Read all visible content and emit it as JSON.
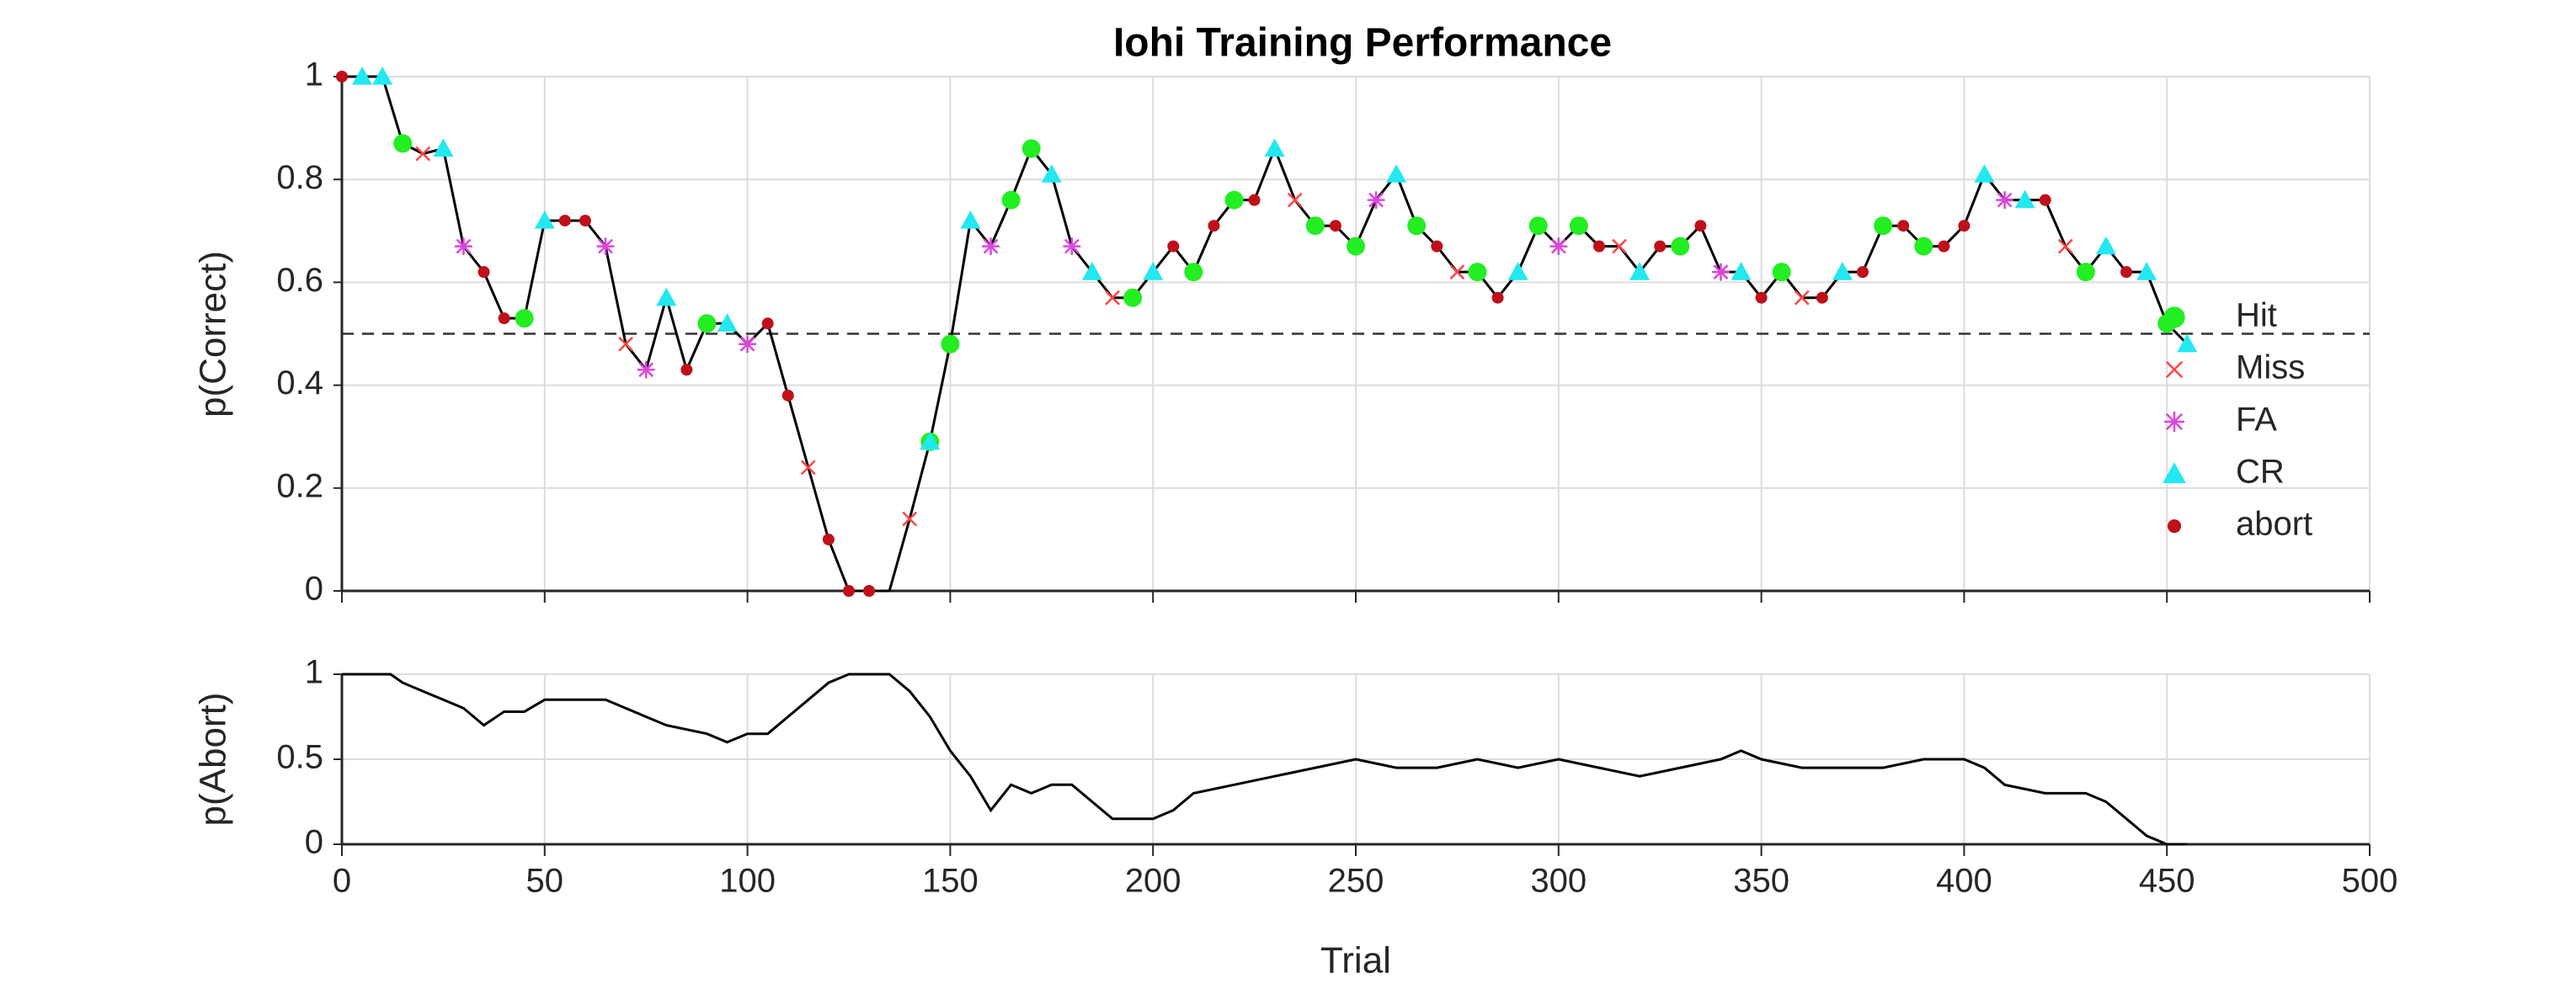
{
  "chart_data": [
    {
      "type": "line",
      "title": "Iohi Training Performance",
      "ylabel": "p(Correct)",
      "color": "#000000",
      "grid": true,
      "reference_line": 0.5,
      "legend": "east",
      "xlim": [
        0,
        500
      ],
      "xticks": [
        0,
        50,
        100,
        150,
        200,
        250,
        300,
        350,
        400,
        450,
        500
      ],
      "ylim": [
        0,
        1
      ],
      "yticks": [
        0,
        0.2,
        0.4,
        0.6,
        0.8,
        1
      ],
      "x": [
        0,
        5,
        10,
        15,
        20,
        25,
        30,
        35,
        40,
        45,
        50,
        55,
        60,
        65,
        70,
        75,
        80,
        85,
        90,
        95,
        100,
        105,
        110,
        115,
        120,
        125,
        130,
        135,
        140,
        145,
        150,
        155,
        160,
        165,
        170,
        175,
        180,
        185,
        190,
        195,
        200,
        205,
        210,
        215,
        220,
        225,
        230,
        235,
        240,
        245,
        250,
        255,
        260,
        265,
        270,
        275,
        280,
        285,
        290,
        295,
        300,
        305,
        310,
        315,
        320,
        325,
        330,
        335,
        340,
        345,
        350,
        355,
        360,
        365,
        370,
        375,
        380,
        385,
        390,
        395,
        400,
        405,
        410,
        415,
        420,
        425,
        430,
        435,
        440,
        445,
        450,
        455
      ],
      "values": [
        1,
        1,
        1,
        0.87,
        0.85,
        0.86,
        0.67,
        0.62,
        0.53,
        0.53,
        0.72,
        0.72,
        0.72,
        0.67,
        0.48,
        0.43,
        0.57,
        0.43,
        0.52,
        0.52,
        0.48,
        0.52,
        0.38,
        0.24,
        0.1,
        0,
        0,
        0,
        0.14,
        0.29,
        0.48,
        0.72,
        0.67,
        0.76,
        0.86,
        0.81,
        0.67,
        0.62,
        0.57,
        0.57,
        0.62,
        0.67,
        0.62,
        0.71,
        0.76,
        0.76,
        0.86,
        0.76,
        0.71,
        0.71,
        0.67,
        0.76,
        0.81,
        0.71,
        0.67,
        0.62,
        0.62,
        0.57,
        0.62,
        0.71,
        0.67,
        0.71,
        0.67,
        0.67,
        0.62,
        0.67,
        0.67,
        0.71,
        0.62,
        0.62,
        0.57,
        0.62,
        0.57,
        0.57,
        0.62,
        0.62,
        0.71,
        0.71,
        0.67,
        0.67,
        0.71,
        0.81,
        0.76,
        0.76,
        0.76,
        0.67,
        0.62,
        0.67,
        0.62,
        0.62,
        0.52,
        0.48
      ],
      "markers": [
        {
          "name": "Hit",
          "color": "#22ee22",
          "marker": "circle",
          "x": [
            15,
            45,
            90,
            145,
            150,
            165,
            170,
            195,
            210,
            220,
            240,
            250,
            265,
            280,
            295,
            305,
            330,
            355,
            380,
            390,
            430,
            450
          ],
          "values": [
            0.87,
            0.53,
            0.52,
            0.29,
            0.48,
            0.76,
            0.86,
            0.57,
            0.62,
            0.76,
            0.71,
            0.67,
            0.71,
            0.62,
            0.71,
            0.71,
            0.67,
            0.62,
            0.71,
            0.67,
            0.62,
            0.52
          ]
        },
        {
          "name": "Miss",
          "color": "#ff4444",
          "marker": "x",
          "x": [
            20,
            70,
            115,
            140,
            190,
            235,
            275,
            315,
            360,
            425
          ],
          "values": [
            0.85,
            0.48,
            0.24,
            0.14,
            0.57,
            0.76,
            0.62,
            0.67,
            0.57,
            0.67
          ]
        },
        {
          "name": "FA",
          "color": "#dd44dd",
          "marker": "asterisk",
          "x": [
            30,
            65,
            75,
            100,
            160,
            180,
            255,
            300,
            340,
            410
          ],
          "values": [
            0.67,
            0.67,
            0.43,
            0.48,
            0.67,
            0.67,
            0.76,
            0.67,
            0.62,
            0.76
          ]
        },
        {
          "name": "CR",
          "color": "#22e8f0",
          "marker": "triangle",
          "x": [
            5,
            10,
            25,
            50,
            80,
            95,
            145,
            155,
            175,
            185,
            200,
            230,
            260,
            290,
            320,
            345,
            370,
            405,
            415,
            435,
            445,
            455
          ],
          "values": [
            1,
            1,
            0.86,
            0.72,
            0.57,
            0.52,
            0.29,
            0.72,
            0.81,
            0.62,
            0.62,
            0.86,
            0.81,
            0.62,
            0.62,
            0.62,
            0.62,
            0.81,
            0.76,
            0.67,
            0.62,
            0.48
          ]
        },
        {
          "name": "abort",
          "color": "#c0101a",
          "marker": "dot",
          "x": [
            0,
            35,
            40,
            55,
            60,
            85,
            105,
            110,
            120,
            125,
            130,
            205,
            215,
            225,
            245,
            270,
            285,
            310,
            325,
            335,
            350,
            365,
            375,
            385,
            395,
            400,
            420,
            440
          ],
          "values": [
            1,
            0.62,
            0.53,
            0.72,
            0.72,
            0.43,
            0.52,
            0.38,
            0.1,
            0,
            0,
            0.67,
            0.71,
            0.76,
            0.71,
            0.67,
            0.57,
            0.67,
            0.67,
            0.71,
            0.57,
            0.57,
            0.62,
            0.71,
            0.67,
            0.71,
            0.76,
            0.62
          ]
        }
      ]
    },
    {
      "type": "line",
      "ylabel": "p(Abort)",
      "xlabel": "Trial",
      "color": "#000000",
      "grid": true,
      "xlim": [
        0,
        500
      ],
      "xticks": [
        0,
        50,
        100,
        150,
        200,
        250,
        300,
        350,
        400,
        450,
        500
      ],
      "ylim": [
        0,
        1
      ],
      "yticks": [
        0,
        0.5,
        1
      ],
      "x": [
        0,
        12,
        15,
        20,
        25,
        30,
        35,
        40,
        45,
        50,
        60,
        65,
        70,
        80,
        90,
        95,
        100,
        105,
        110,
        115,
        120,
        125,
        135,
        140,
        145,
        150,
        155,
        160,
        165,
        170,
        175,
        180,
        185,
        190,
        195,
        200,
        205,
        210,
        220,
        230,
        240,
        250,
        260,
        270,
        280,
        290,
        300,
        310,
        320,
        330,
        340,
        345,
        350,
        360,
        370,
        380,
        390,
        400,
        405,
        410,
        420,
        430,
        435,
        440,
        445,
        450,
        455
      ],
      "values": [
        1,
        1,
        0.95,
        0.9,
        0.85,
        0.8,
        0.7,
        0.78,
        0.78,
        0.85,
        0.85,
        0.85,
        0.8,
        0.7,
        0.65,
        0.6,
        0.65,
        0.65,
        0.75,
        0.85,
        0.95,
        1,
        1,
        0.9,
        0.75,
        0.55,
        0.4,
        0.2,
        0.35,
        0.3,
        0.35,
        0.35,
        0.25,
        0.15,
        0.15,
        0.15,
        0.2,
        0.3,
        0.35,
        0.4,
        0.45,
        0.5,
        0.45,
        0.45,
        0.5,
        0.45,
        0.5,
        0.45,
        0.4,
        0.45,
        0.5,
        0.55,
        0.5,
        0.45,
        0.45,
        0.45,
        0.5,
        0.5,
        0.45,
        0.35,
        0.3,
        0.3,
        0.25,
        0.15,
        0.05,
        0,
        0
      ]
    }
  ]
}
